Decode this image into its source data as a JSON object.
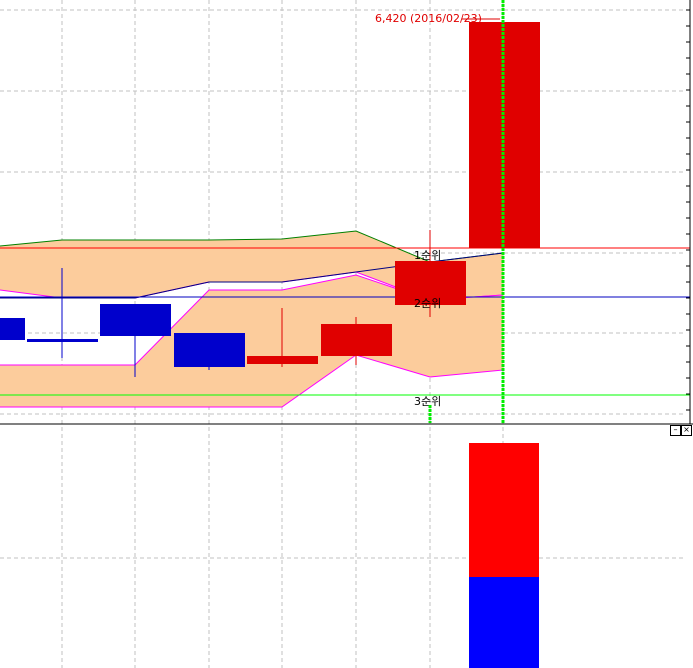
{
  "chart_data": {
    "type": "candlestick",
    "title": "",
    "high_marker": {
      "value": "6,420",
      "date": "2016/02/23",
      "text": "6,420 (2016/02/23)"
    },
    "rank_labels": [
      "1순위",
      "2순위",
      "3순위"
    ],
    "rank_line_colors": [
      "#ff0000",
      "#0000c0",
      "#00ff00"
    ],
    "candles": [
      {
        "direction": "down"
      },
      {
        "direction": "down"
      },
      {
        "direction": "down"
      },
      {
        "direction": "down"
      },
      {
        "direction": "up"
      },
      {
        "direction": "up"
      },
      {
        "direction": "up"
      },
      {
        "direction": "up"
      }
    ],
    "volume_last": {
      "up_color": "#ff0000",
      "down_color": "#0000ff"
    },
    "grid": true,
    "colors": {
      "up": "#e00000",
      "down": "#0000cc",
      "band_fill": "#fccc9c",
      "band_edge_1": "#ff00ff",
      "band_edge_2": "#008000",
      "crosshair": "#00ee00"
    }
  },
  "pane_controls": {
    "minimize": "–",
    "close": "×"
  }
}
